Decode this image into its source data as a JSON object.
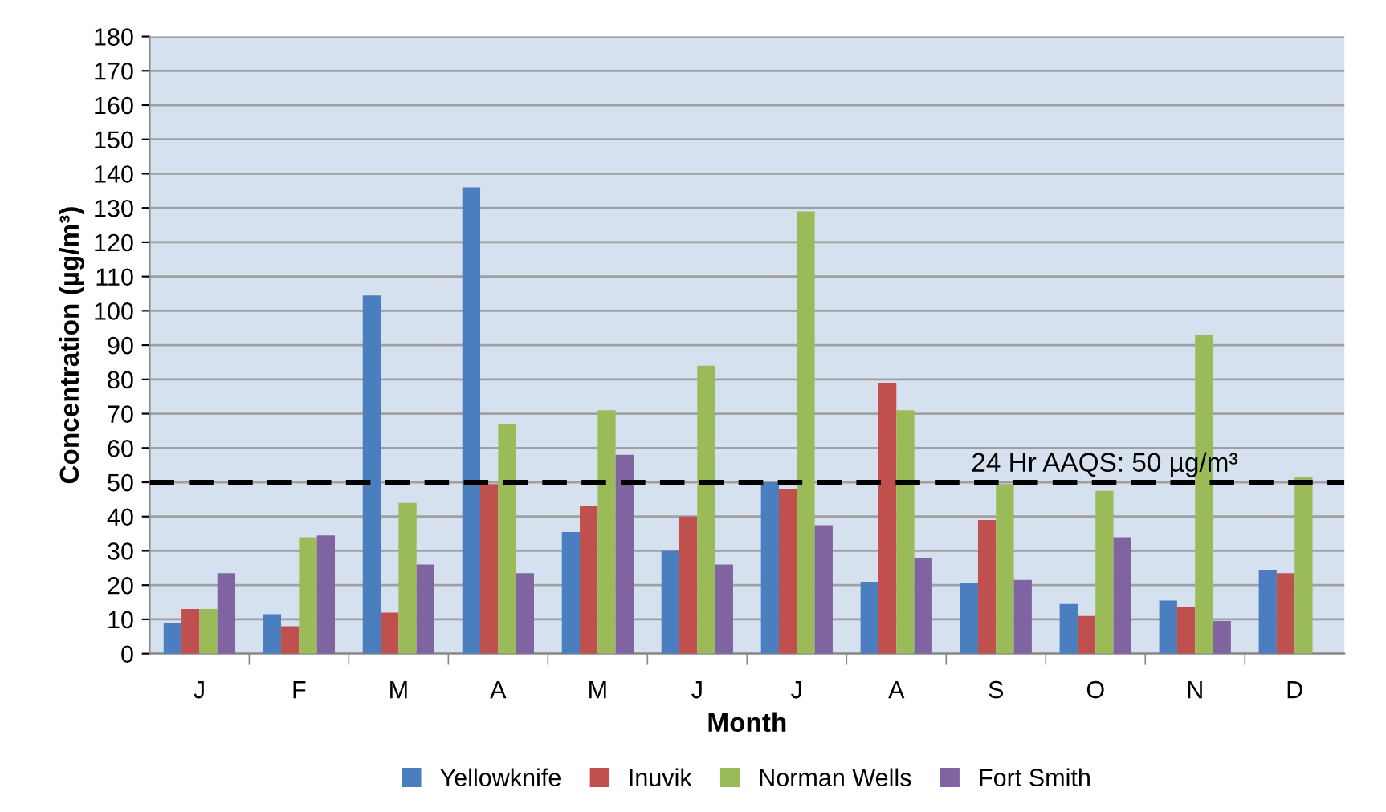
{
  "chart_data": {
    "type": "bar",
    "xlabel": "Month",
    "ylabel": "Concentration (µg/m³)",
    "categories": [
      "J",
      "F",
      "M",
      "A",
      "M",
      "J",
      "J",
      "A",
      "S",
      "O",
      "N",
      "D"
    ],
    "series": [
      {
        "name": "Yellowknife",
        "color": "#4a7ebf",
        "values": [
          9,
          11.5,
          104.5,
          136,
          35.5,
          30,
          50,
          21,
          20.5,
          14.5,
          15.5,
          24.5
        ]
      },
      {
        "name": "Inuvik",
        "color": "#c0504d",
        "values": [
          13,
          8,
          12,
          49.5,
          43,
          40,
          48,
          79,
          39,
          11,
          13.5,
          23.5
        ]
      },
      {
        "name": "Norman Wells",
        "color": "#9bbb59",
        "values": [
          13,
          34,
          44,
          67,
          71,
          84,
          129,
          71,
          49.5,
          47.5,
          93,
          51.5
        ]
      },
      {
        "name": "Fort Smith",
        "color": "#8064a2",
        "values": [
          23.5,
          34.5,
          26,
          23.5,
          58,
          26,
          37.5,
          28,
          21.5,
          34,
          9.5,
          null
        ]
      }
    ],
    "ylim": [
      0,
      180
    ],
    "yticks": [
      0,
      10,
      20,
      30,
      40,
      50,
      60,
      70,
      80,
      90,
      100,
      110,
      120,
      130,
      140,
      150,
      160,
      170,
      180
    ],
    "grid": "y",
    "legend": "bottom",
    "ref_lines": [
      {
        "axis": "y",
        "value": 50,
        "label": "24 Hr AAQS: 50 µg/m³",
        "color": "#000000",
        "line_style": "dashed"
      }
    ]
  }
}
